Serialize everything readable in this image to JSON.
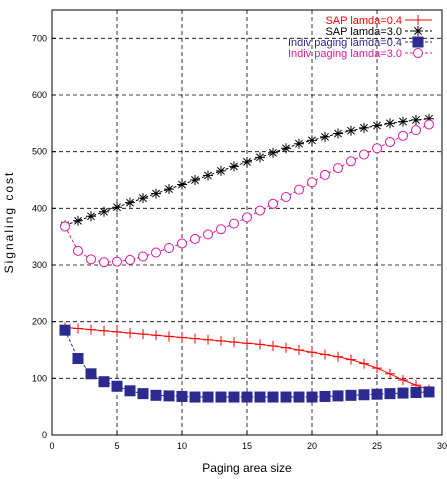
{
  "chart_data": {
    "type": "line",
    "title": "",
    "xlabel": "Paging area size",
    "ylabel": "Signaling cost",
    "xlim": [
      0,
      30
    ],
    "ylim": [
      0,
      750
    ],
    "xticks": [
      0,
      5,
      10,
      15,
      20,
      25,
      30
    ],
    "yticks": [
      0,
      100,
      200,
      300,
      400,
      500,
      600,
      700
    ],
    "grid": true,
    "legend_position": "top-right",
    "x": [
      1,
      2,
      3,
      4,
      5,
      6,
      7,
      8,
      9,
      10,
      11,
      12,
      13,
      14,
      15,
      16,
      17,
      18,
      19,
      20,
      21,
      22,
      23,
      24,
      25,
      26,
      27,
      28,
      29
    ],
    "series": [
      {
        "name": "SAP lamda=0.4",
        "color": "#ff0000",
        "marker": "plus",
        "values": [
          190,
          188,
          186,
          184,
          182,
          180,
          178,
          176,
          174,
          172,
          170,
          168,
          166,
          164,
          162,
          160,
          157,
          154,
          150,
          146,
          142,
          138,
          133,
          126,
          118,
          108,
          97,
          88,
          80
        ]
      },
      {
        "name": "SAP lamda=3.0",
        "color": "#000000",
        "marker": "asterisk",
        "values": [
          370,
          378,
          386,
          394,
          402,
          410,
          418,
          426,
          434,
          442,
          450,
          458,
          466,
          474,
          482,
          490,
          498,
          506,
          514,
          520,
          526,
          532,
          537,
          542,
          546,
          550,
          553,
          556,
          558
        ]
      },
      {
        "name": "Indiv paging lamda=0.4",
        "color": "#2a2a8f",
        "marker": "square",
        "values": [
          185,
          135,
          108,
          94,
          86,
          78,
          73,
          70,
          69,
          68,
          67,
          67,
          67,
          67,
          67,
          67,
          67,
          67,
          67,
          67,
          68,
          69,
          70,
          71,
          72,
          73,
          74,
          75,
          76
        ]
      },
      {
        "name": "Indiv paging lamda=3.0",
        "color": "#e0199e",
        "marker": "circle",
        "values": [
          368,
          325,
          310,
          305,
          306,
          309,
          315,
          322,
          330,
          338,
          346,
          354,
          363,
          373,
          384,
          396,
          408,
          420,
          433,
          446,
          459,
          471,
          483,
          495,
          506,
          517,
          528,
          538,
          548
        ]
      }
    ]
  }
}
